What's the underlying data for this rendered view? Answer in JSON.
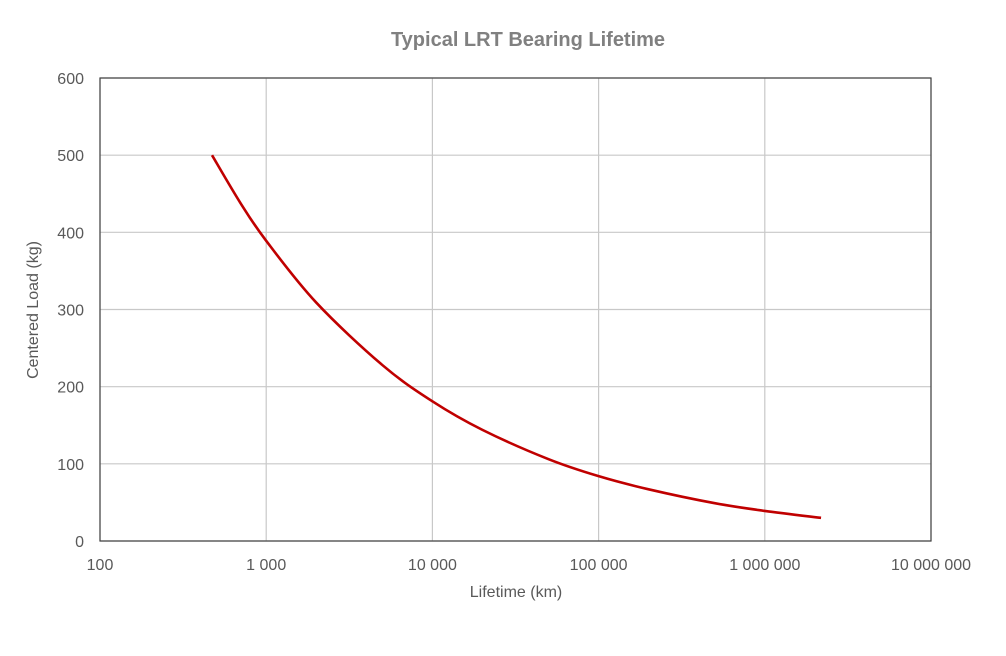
{
  "chart_data": {
    "type": "line",
    "title": "Typical LRT Bearing Lifetime",
    "xlabel": "Lifetime (km)",
    "ylabel": "Centered Load (kg)",
    "xscale": "log",
    "xlim": [
      100,
      10000000
    ],
    "ylim": [
      0,
      600
    ],
    "xticks": [
      100,
      1000,
      10000,
      100000,
      1000000,
      10000000
    ],
    "xtick_labels": [
      "100",
      "1 000",
      "10 000",
      "100 000",
      "1 000 000",
      "10 000 000"
    ],
    "yticks": [
      0,
      100,
      200,
      300,
      400,
      500,
      600
    ],
    "ytick_labels": [
      "0",
      "100",
      "200",
      "300",
      "400",
      "500",
      "600"
    ],
    "grid": true,
    "legend": "none",
    "series": [
      {
        "color": "#C00000",
        "x": [
          472,
          700,
          1000,
          2000,
          5000,
          10000,
          20000,
          50000,
          100000,
          200000,
          500000,
          1000000,
          2180000
        ],
        "y": [
          500,
          438,
          389,
          309,
          228,
          181,
          144,
          106,
          84,
          67,
          49,
          39,
          30
        ]
      }
    ]
  },
  "colors": {
    "title": "#808080",
    "text": "#595959",
    "grid": "#C8C8C8",
    "axis": "#404040"
  }
}
